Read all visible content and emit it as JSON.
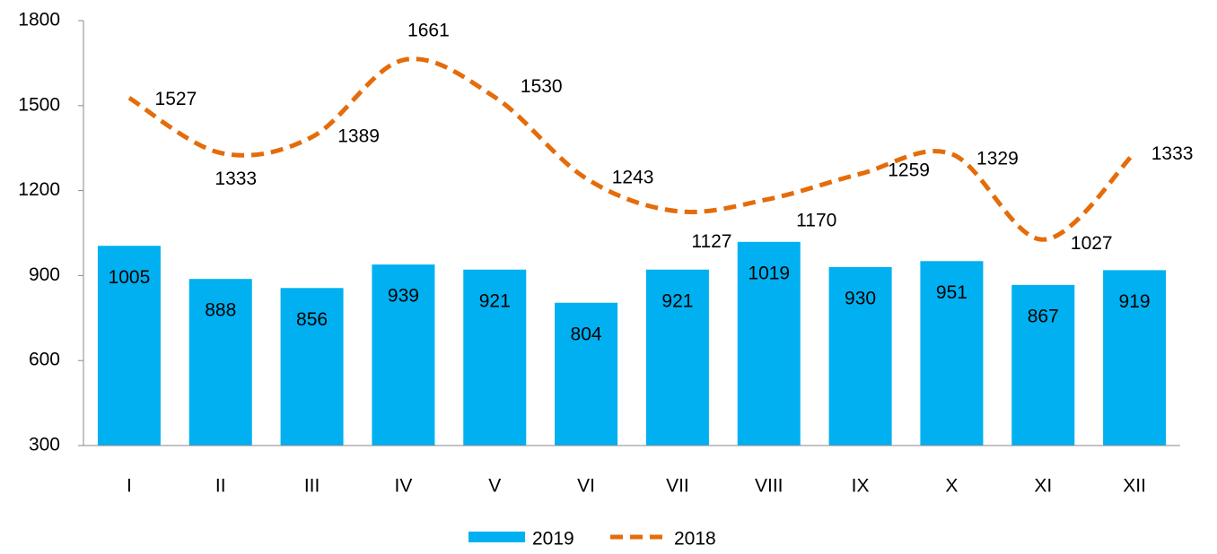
{
  "chart_data": {
    "type": "bar-line",
    "categories": [
      "I",
      "II",
      "III",
      "IV",
      "V",
      "VI",
      "VII",
      "VIII",
      "IX",
      "X",
      "XI",
      "XII"
    ],
    "series": [
      {
        "name": "2019",
        "type": "bar",
        "color": "#00b0f0",
        "values": [
          1005,
          888,
          856,
          939,
          921,
          804,
          921,
          1019,
          930,
          951,
          867,
          919
        ]
      },
      {
        "name": "2018",
        "type": "line",
        "style": "dashed",
        "smooth": true,
        "color": "#e46c0a",
        "values": [
          1527,
          1333,
          1389,
          1661,
          1530,
          1243,
          1127,
          1170,
          1259,
          1329,
          1027,
          1333
        ]
      }
    ],
    "ylim": [
      300,
      1800
    ],
    "yticks": [
      300,
      600,
      900,
      1200,
      1500,
      1800
    ],
    "grid": false,
    "legend": "bottom"
  }
}
